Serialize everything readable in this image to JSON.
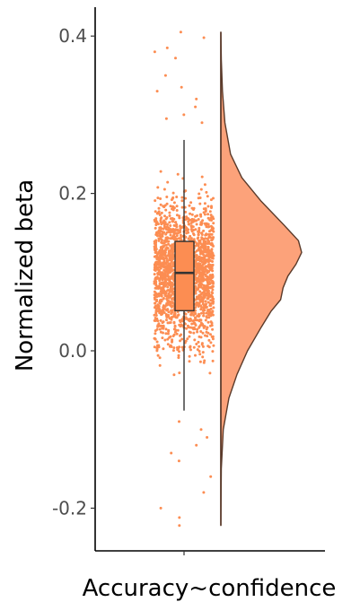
{
  "chart_data": {
    "type": "raincloud",
    "ylabel": "Normalized beta",
    "xlabel": "",
    "categories": [
      "Accuracy~confidence"
    ],
    "ylim": [
      -0.25,
      0.44
    ],
    "yticks": [
      -0.2,
      0.0,
      0.2,
      0.4
    ],
    "ytick_labels": [
      "-0.2",
      "0.0",
      "0.2",
      "0.4"
    ],
    "grid": false,
    "legend": "none",
    "box": {
      "min": -0.076,
      "q1": 0.051,
      "median": 0.099,
      "q3": 0.139,
      "max": 0.268
    },
    "density": {
      "y": [
        -0.222,
        -0.15,
        -0.1,
        -0.06,
        -0.03,
        0.0,
        0.03,
        0.05,
        0.065,
        0.08,
        0.095,
        0.11,
        0.125,
        0.14,
        0.16,
        0.19,
        0.22,
        0.25,
        0.29,
        0.33,
        0.37,
        0.405
      ],
      "relative_width": [
        0.0,
        0.006,
        0.03,
        0.1,
        0.2,
        0.33,
        0.5,
        0.62,
        0.74,
        0.77,
        0.83,
        0.93,
        1.0,
        0.96,
        0.78,
        0.5,
        0.26,
        0.12,
        0.05,
        0.02,
        0.006,
        0.0
      ]
    },
    "scatter_points_approx": 2000,
    "outlier_values": [
      0.405,
      0.398,
      0.385,
      0.38,
      0.372,
      0.35,
      0.335,
      0.33,
      0.32,
      0.31,
      0.3,
      0.295,
      0.29,
      -0.09,
      -0.1,
      -0.11,
      -0.12,
      -0.13,
      -0.14,
      -0.16,
      -0.18,
      -0.2,
      -0.212,
      -0.222
    ],
    "colors": {
      "points": "#FC8D52",
      "cloud_fill": "#FCA27A",
      "cloud_outline": "#5a3a2a",
      "box_fill": "#FC8D52",
      "box_line": "#333333",
      "axis": "#000000"
    }
  }
}
